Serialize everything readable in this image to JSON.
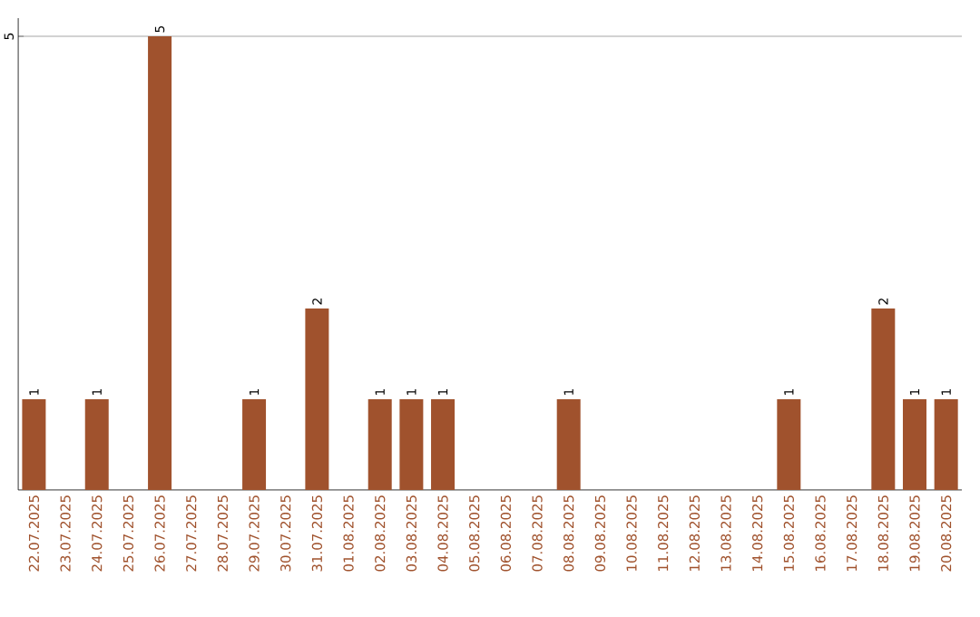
{
  "chart_data": {
    "type": "bar",
    "categories": [
      "22.07.2025",
      "23.07.2025",
      "24.07.2025",
      "25.07.2025",
      "26.07.2025",
      "27.07.2025",
      "28.07.2025",
      "29.07.2025",
      "30.07.2025",
      "31.07.2025",
      "01.08.2025",
      "02.08.2025",
      "03.08.2025",
      "04.08.2025",
      "05.08.2025",
      "06.08.2025",
      "07.08.2025",
      "08.08.2025",
      "09.08.2025",
      "10.08.2025",
      "11.08.2025",
      "12.08.2025",
      "13.08.2025",
      "14.08.2025",
      "15.08.2025",
      "16.08.2025",
      "17.08.2025",
      "18.08.2025",
      "19.08.2025",
      "20.08.2025"
    ],
    "values": [
      1,
      0,
      1,
      0,
      5,
      0,
      0,
      1,
      0,
      2,
      0,
      1,
      1,
      1,
      0,
      0,
      0,
      1,
      0,
      0,
      0,
      0,
      0,
      0,
      1,
      0,
      0,
      2,
      1,
      1
    ],
    "value_labels": [
      "1",
      null,
      "1",
      null,
      "5",
      null,
      null,
      "1",
      null,
      "2",
      null,
      "1",
      "1",
      "1",
      null,
      null,
      null,
      "1",
      null,
      null,
      null,
      null,
      null,
      null,
      "1",
      null,
      null,
      "2",
      "1",
      "1"
    ],
    "color": "#a0522d",
    "ylim": [
      0,
      5.2
    ],
    "yticks": [
      5
    ],
    "grid": "y"
  }
}
